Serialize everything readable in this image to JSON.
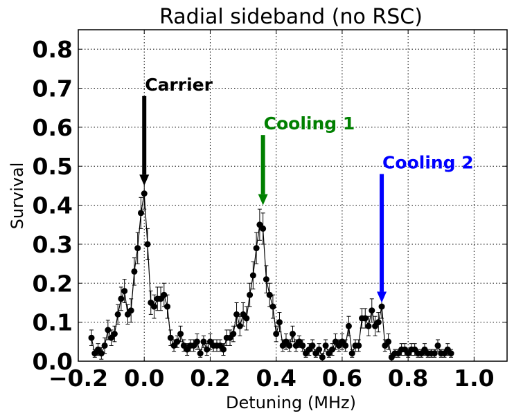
{
  "chart_data": {
    "type": "scatter",
    "title": "Radial sideband (no RSC)",
    "xlabel": "Detuning (MHz)",
    "ylabel": "Survival",
    "xlim": [
      -0.2,
      1.1
    ],
    "ylim": [
      0.0,
      0.85
    ],
    "xticks": [
      -0.2,
      0.0,
      0.2,
      0.4,
      0.6,
      0.8,
      1.0
    ],
    "xtick_labels": [
      "−0.2",
      "0.0",
      "0.2",
      "0.4",
      "0.6",
      "0.8",
      "1.0"
    ],
    "yticks": [
      0.0,
      0.1,
      0.2,
      0.3,
      0.4,
      0.5,
      0.6,
      0.7,
      0.8
    ],
    "ytick_labels": [
      "0.0",
      "0.1",
      "0.2",
      "0.3",
      "0.4",
      "0.5",
      "0.6",
      "0.7",
      "0.8"
    ],
    "grid": true,
    "series": [
      {
        "color": "#000000",
        "marker": "circle",
        "line": true,
        "errorbars": true,
        "x": [
          -0.16,
          -0.15,
          -0.14,
          -0.13,
          -0.12,
          -0.11,
          -0.1,
          -0.09,
          -0.08,
          -0.07,
          -0.06,
          -0.05,
          -0.04,
          -0.03,
          -0.02,
          -0.01,
          0.0,
          0.01,
          0.02,
          0.03,
          0.04,
          0.05,
          0.06,
          0.07,
          0.08,
          0.09,
          0.1,
          0.11,
          0.12,
          0.13,
          0.14,
          0.15,
          0.16,
          0.17,
          0.18,
          0.19,
          0.2,
          0.21,
          0.22,
          0.23,
          0.24,
          0.25,
          0.26,
          0.27,
          0.28,
          0.29,
          0.3,
          0.31,
          0.32,
          0.33,
          0.34,
          0.35,
          0.36,
          0.37,
          0.38,
          0.39,
          0.4,
          0.41,
          0.42,
          0.43,
          0.44,
          0.45,
          0.46,
          0.47,
          0.48,
          0.49,
          0.5,
          0.51,
          0.52,
          0.53,
          0.54,
          0.55,
          0.56,
          0.57,
          0.58,
          0.59,
          0.6,
          0.61,
          0.62,
          0.63,
          0.64,
          0.65,
          0.66,
          0.67,
          0.68,
          0.69,
          0.7,
          0.71,
          0.72,
          0.73,
          0.74,
          0.75,
          0.76,
          0.77,
          0.78,
          0.79,
          0.8,
          0.81,
          0.82,
          0.83,
          0.84,
          0.85,
          0.86,
          0.87,
          0.88,
          0.89,
          0.9,
          0.91,
          0.92,
          0.93
        ],
        "y": [
          0.06,
          0.02,
          0.03,
          0.02,
          0.04,
          0.08,
          0.06,
          0.07,
          0.12,
          0.16,
          0.18,
          0.12,
          0.13,
          0.23,
          0.29,
          0.38,
          0.43,
          0.3,
          0.15,
          0.14,
          0.16,
          0.16,
          0.17,
          0.14,
          0.06,
          0.04,
          0.05,
          0.07,
          0.04,
          0.03,
          0.04,
          0.04,
          0.05,
          0.02,
          0.05,
          0.03,
          0.05,
          0.04,
          0.04,
          0.04,
          0.03,
          0.06,
          0.06,
          0.07,
          0.12,
          0.09,
          0.12,
          0.11,
          0.17,
          0.22,
          0.29,
          0.35,
          0.34,
          0.21,
          0.17,
          0.14,
          0.07,
          0.1,
          0.04,
          0.05,
          0.04,
          0.07,
          0.04,
          0.05,
          0.04,
          0.02,
          0.03,
          0.04,
          0.02,
          0.03,
          0.01,
          0.04,
          0.02,
          0.03,
          0.05,
          0.04,
          0.05,
          0.04,
          0.09,
          0.02,
          0.04,
          0.04,
          0.11,
          0.11,
          0.09,
          0.13,
          0.09,
          0.1,
          0.14,
          0.04,
          0.05,
          0.01,
          0.02,
          0.02,
          0.03,
          0.03,
          0.02,
          0.03,
          0.03,
          0.02,
          0.02,
          0.03,
          0.02,
          0.02,
          0.02,
          0.04,
          0.02,
          0.02,
          0.03,
          0.02
        ],
        "err": [
          0.02,
          0.01,
          0.015,
          0.015,
          0.02,
          0.025,
          0.02,
          0.02,
          0.025,
          0.03,
          0.03,
          0.025,
          0.03,
          0.035,
          0.04,
          0.04,
          0.04,
          0.04,
          0.03,
          0.03,
          0.03,
          0.03,
          0.03,
          0.03,
          0.02,
          0.015,
          0.015,
          0.02,
          0.015,
          0.015,
          0.015,
          0.015,
          0.02,
          0.01,
          0.015,
          0.015,
          0.02,
          0.015,
          0.015,
          0.015,
          0.015,
          0.02,
          0.02,
          0.02,
          0.03,
          0.025,
          0.03,
          0.03,
          0.03,
          0.035,
          0.04,
          0.04,
          0.04,
          0.035,
          0.03,
          0.03,
          0.02,
          0.025,
          0.015,
          0.02,
          0.015,
          0.02,
          0.015,
          0.015,
          0.015,
          0.01,
          0.015,
          0.015,
          0.01,
          0.015,
          0.01,
          0.015,
          0.01,
          0.015,
          0.02,
          0.015,
          0.02,
          0.015,
          0.025,
          0.01,
          0.015,
          0.015,
          0.025,
          0.025,
          0.025,
          0.03,
          0.025,
          0.025,
          0.03,
          0.015,
          0.02,
          0.01,
          0.01,
          0.01,
          0.015,
          0.015,
          0.01,
          0.015,
          0.015,
          0.01,
          0.01,
          0.015,
          0.01,
          0.01,
          0.01,
          0.015,
          0.01,
          0.01,
          0.015,
          0.01
        ]
      }
    ],
    "annotations": [
      {
        "text": "Carrier",
        "color": "#000000",
        "arrow_x": 0.0,
        "arrow_from_y": 0.68,
        "arrow_to_y": 0.45
      },
      {
        "text": "Cooling 1",
        "color": "#008000",
        "arrow_x": 0.36,
        "arrow_from_y": 0.58,
        "arrow_to_y": 0.4
      },
      {
        "text": "Cooling 2",
        "color": "#0000ff",
        "arrow_x": 0.72,
        "arrow_from_y": 0.48,
        "arrow_to_y": 0.15
      }
    ]
  }
}
